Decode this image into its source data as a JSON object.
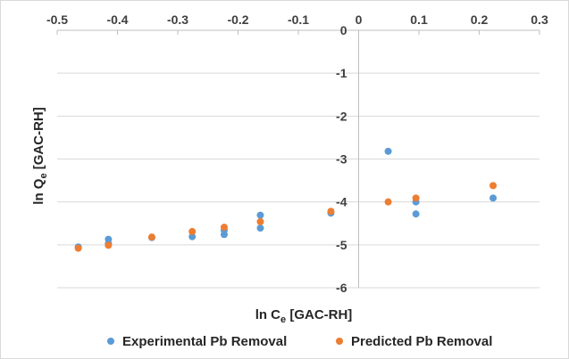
{
  "chart_data": {
    "type": "scatter",
    "title": "",
    "xlabel": {
      "base": "ln C",
      "sub": "e",
      "suffix": " [GAC-RH]"
    },
    "ylabel": {
      "base": "ln Q",
      "sub": "e",
      "suffix": " [GAC-RH]"
    },
    "xlim": [
      -0.5,
      0.3
    ],
    "ylim": [
      -6,
      0
    ],
    "x_ticks": [
      -0.5,
      -0.4,
      -0.3,
      -0.2,
      -0.1,
      0,
      0.1,
      0.2,
      0.3
    ],
    "x_tick_labels": [
      "-0.5",
      "-0.4",
      "-0.3",
      "-0.2",
      "-0.1",
      "0",
      "0.1",
      "0.2",
      "0.3"
    ],
    "y_ticks": [
      0,
      -1,
      -2,
      -3,
      -4,
      -5,
      -6
    ],
    "y_tick_labels": [
      "0",
      "-1",
      "-2",
      "-3",
      "-4",
      "-5",
      "-6"
    ],
    "grid": "horizontal",
    "legend_position": "bottom",
    "series": [
      {
        "name": "Experimental Pb Removal",
        "color": "#5b9bd5",
        "points": [
          {
            "x": -0.465,
            "y": -5.05
          },
          {
            "x": -0.415,
            "y": -4.87
          },
          {
            "x": -0.415,
            "y": -4.97
          },
          {
            "x": -0.343,
            "y": -4.83
          },
          {
            "x": -0.276,
            "y": -4.81
          },
          {
            "x": -0.223,
            "y": -4.76
          },
          {
            "x": -0.223,
            "y": -4.66
          },
          {
            "x": -0.163,
            "y": -4.31
          },
          {
            "x": -0.163,
            "y": -4.61
          },
          {
            "x": -0.046,
            "y": -4.26
          },
          {
            "x": 0.049,
            "y": -2.82
          },
          {
            "x": 0.095,
            "y": -4.0
          },
          {
            "x": 0.095,
            "y": -4.28
          },
          {
            "x": 0.223,
            "y": -3.91
          }
        ]
      },
      {
        "name": "Predicted Pb Removal",
        "color": "#ed7d31",
        "points": [
          {
            "x": -0.465,
            "y": -5.08
          },
          {
            "x": -0.415,
            "y": -5.01
          },
          {
            "x": -0.343,
            "y": -4.82
          },
          {
            "x": -0.276,
            "y": -4.69
          },
          {
            "x": -0.223,
            "y": -4.59
          },
          {
            "x": -0.163,
            "y": -4.46
          },
          {
            "x": -0.046,
            "y": -4.22
          },
          {
            "x": 0.049,
            "y": -4.0
          },
          {
            "x": 0.095,
            "y": -3.91
          },
          {
            "x": 0.223,
            "y": -3.62
          }
        ]
      }
    ]
  }
}
